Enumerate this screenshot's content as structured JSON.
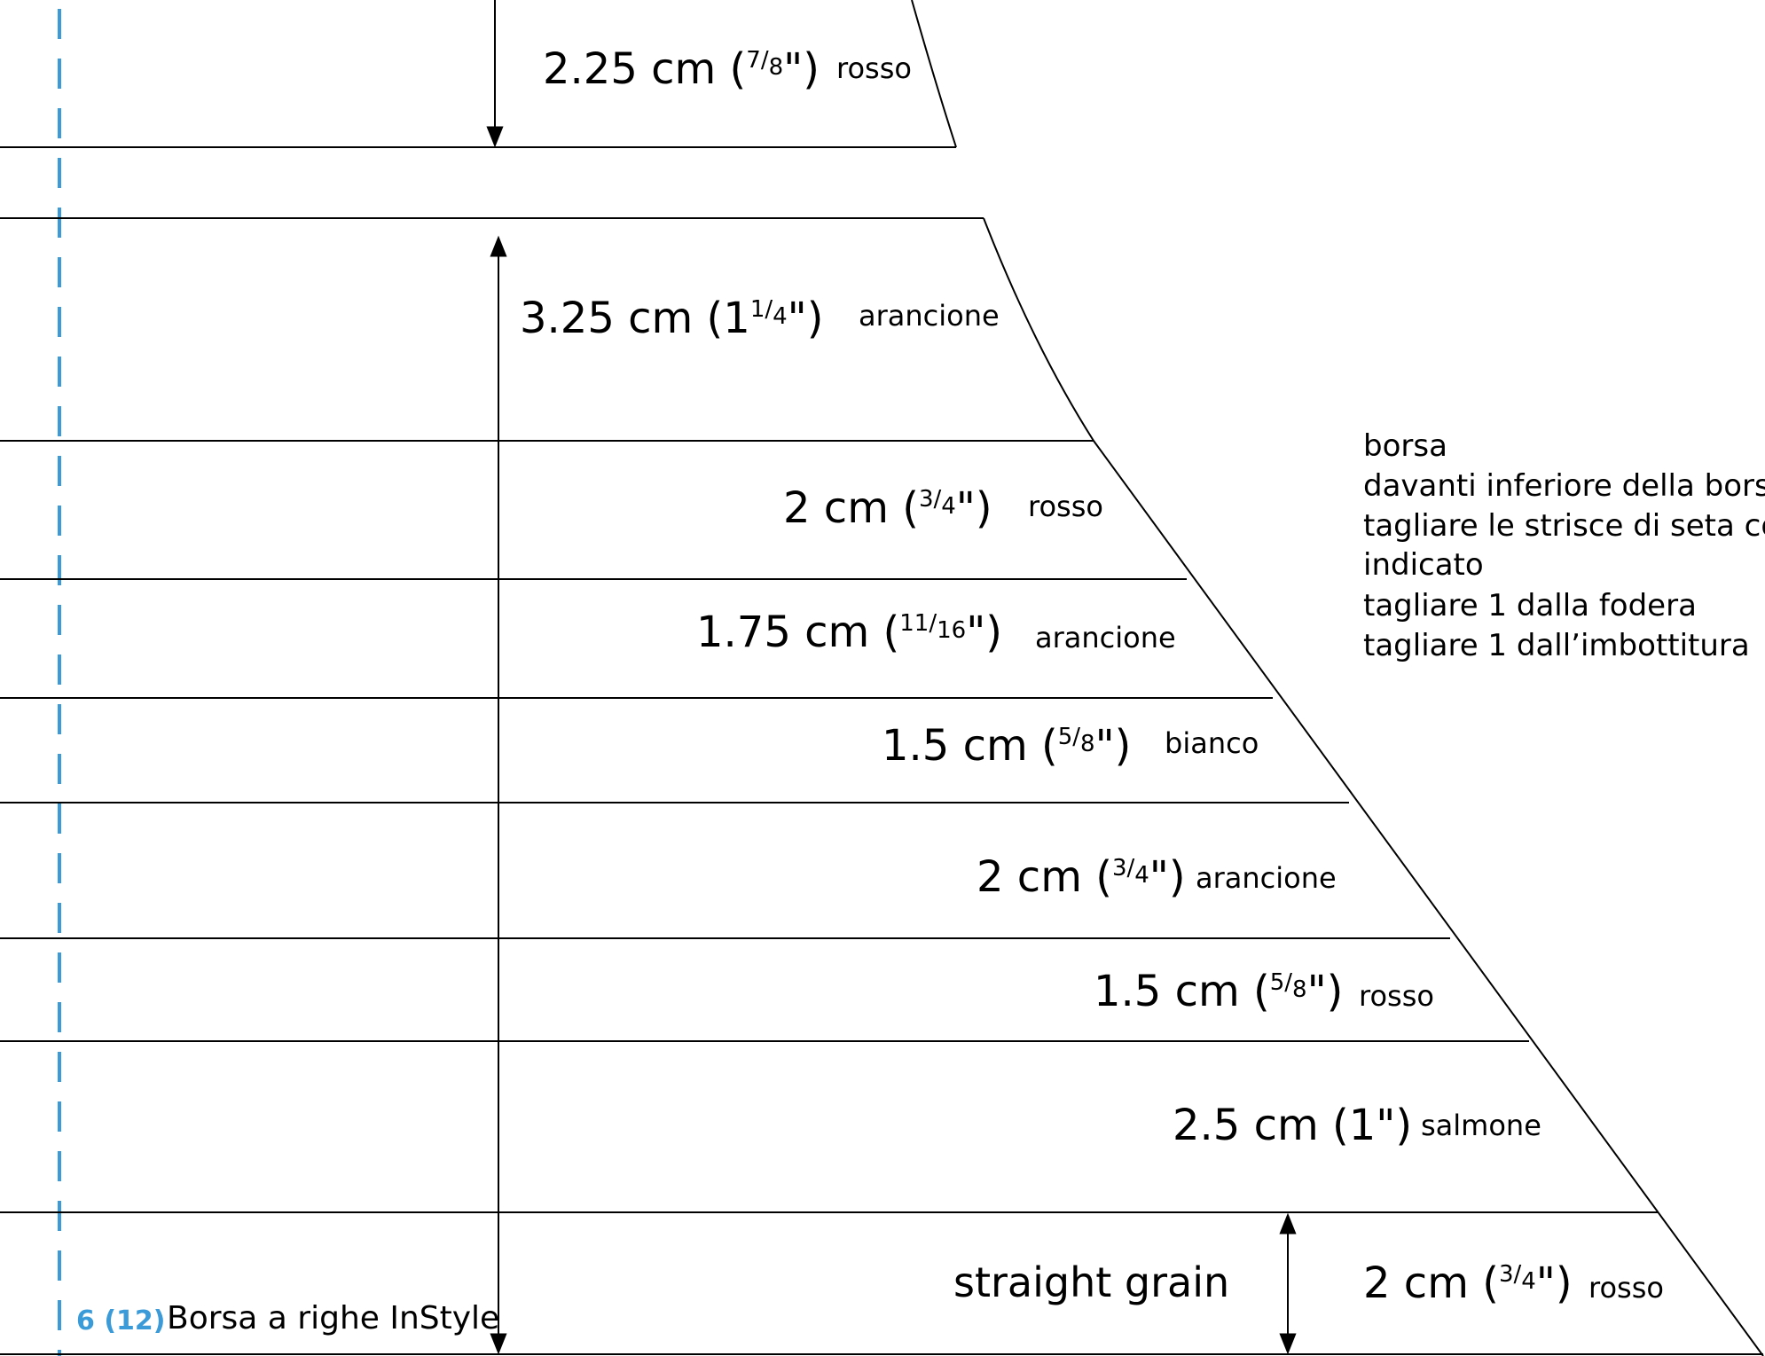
{
  "stripes_top": {
    "measure": "2.25 cm (",
    "fraction_num": "7",
    "fraction_den": "8",
    "close": "\")",
    "color_name": "rosso"
  },
  "stripes": [
    {
      "whole": "3.25 cm (1",
      "num": "1",
      "den": "4",
      "close": "\")",
      "color_name": "arancione"
    },
    {
      "whole": "2 cm (",
      "num": "3",
      "den": "4",
      "close": "\")",
      "color_name": "rosso"
    },
    {
      "whole": "1.75 cm (",
      "num": "11",
      "den": "16",
      "close": "\")",
      "color_name": "arancione"
    },
    {
      "whole": "1.5 cm (",
      "num": "5",
      "den": "8",
      "close": "\")",
      "color_name": "bianco"
    },
    {
      "whole": "2 cm (",
      "num": "3",
      "den": "4",
      "close": "\")",
      "color_name": "arancione"
    },
    {
      "whole": "1.5 cm (",
      "num": "5",
      "den": "8",
      "close": "\")",
      "color_name": "rosso"
    },
    {
      "whole": "2.5 cm (1\")",
      "num": "",
      "den": "",
      "close": "",
      "color_name": "salmone"
    },
    {
      "whole": "2 cm (",
      "num": "3",
      "den": "4",
      "close": "\")",
      "color_name": "rosso"
    }
  ],
  "grain_label": "straight grain",
  "info": {
    "lines": [
      "borsa",
      "davanti inferiore della borsa",
      "tagliare le strisce di seta come",
      "indicato",
      "tagliare 1 dalla fodera",
      "tagliare 1 dall’imbottitura"
    ]
  },
  "footer": {
    "page_number": "6 (12)",
    "title": "Borsa a righe InStyle"
  },
  "colors": {
    "fold_line": "#3b9ad8",
    "outline": "#000000"
  }
}
